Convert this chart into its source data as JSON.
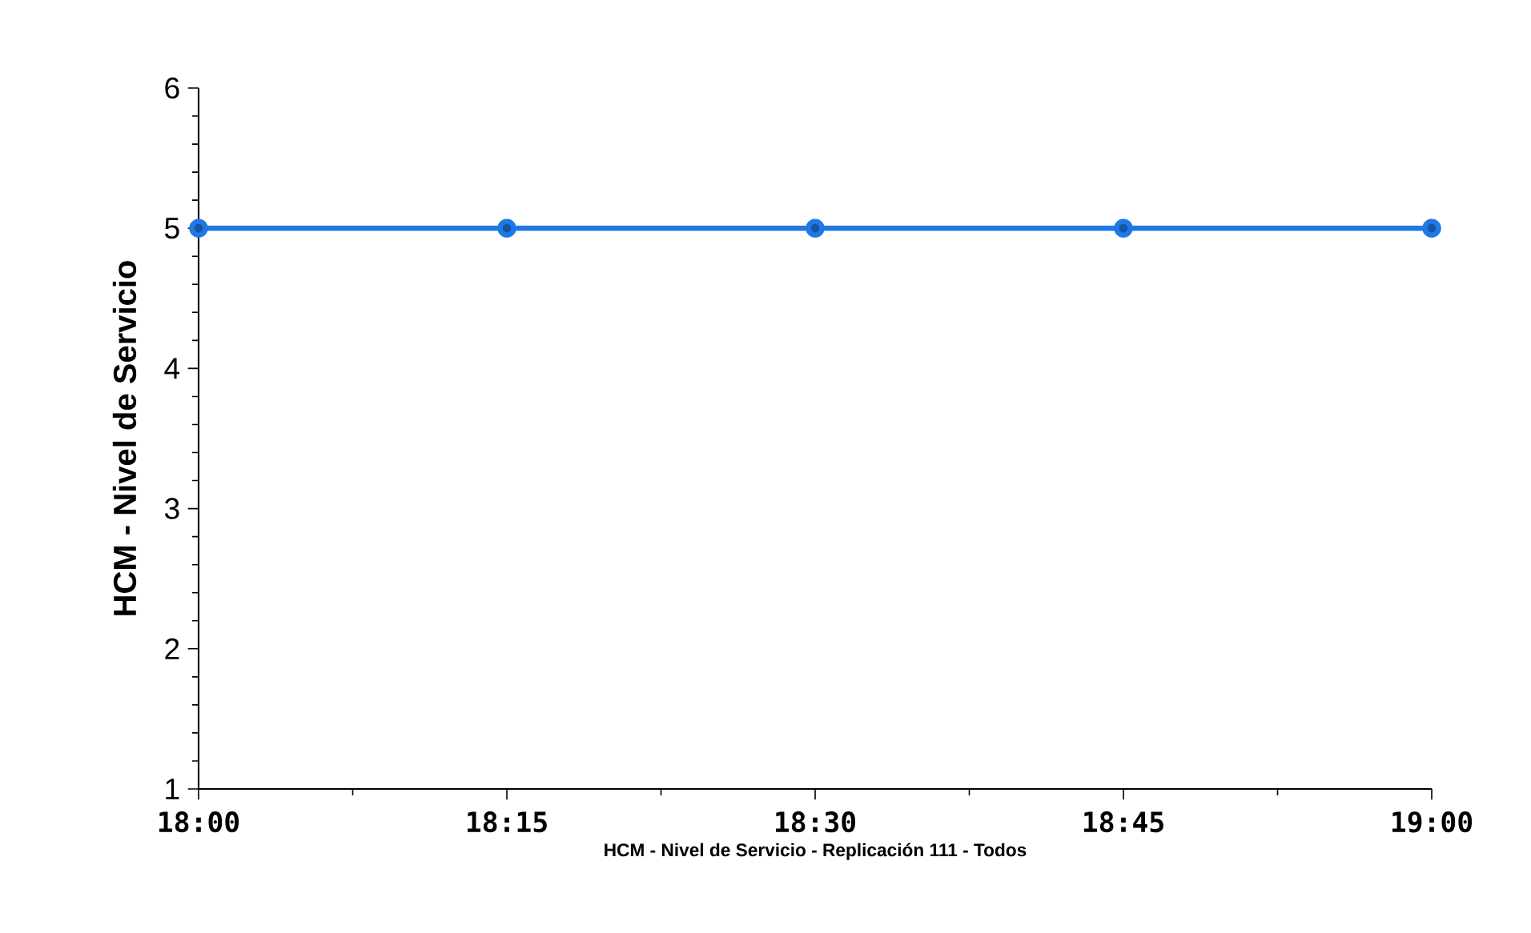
{
  "chart_data": {
    "type": "line",
    "xlabel": "HCM - Nivel de Servicio - Replicación 111 - Todos",
    "ylabel": "HCM - Nivel de Servicio",
    "x": [
      18,
      18.25,
      18.5,
      18.75,
      19
    ],
    "series": [
      {
        "color": "#1f78e6",
        "values": [
          5,
          5,
          5,
          5,
          5
        ]
      }
    ],
    "marker": "circle",
    "line_style": "solid",
    "xlim": [
      18,
      19
    ],
    "xticks": [
      {
        "value": 18,
        "label": "18:00"
      },
      {
        "value": 18.25,
        "label": "18:15"
      },
      {
        "value": 18.5,
        "label": "18:30"
      },
      {
        "value": 18.75,
        "label": "18:45"
      },
      {
        "value": 19,
        "label": "19:00"
      }
    ],
    "ylim": [
      1,
      6
    ],
    "yticks": [
      1,
      2,
      3,
      4,
      5,
      6
    ]
  }
}
